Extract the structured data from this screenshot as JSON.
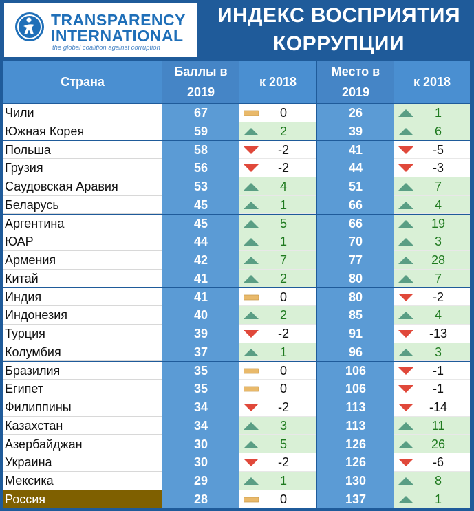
{
  "logo": {
    "line1": "TRANSPARENCY",
    "line2": "INTERNATIONAL",
    "tagline": "the global coalition against corruption",
    "icon": "globe-person-icon"
  },
  "title": {
    "line1": "ИНДЕКС ВОСПРИЯТИЯ",
    "line2": "КОРРУПЦИИ"
  },
  "colors": {
    "header_bg": "#1f5b9a",
    "column_header_bg": "#4a8fd1",
    "value_column_bg": "#5b9bd5",
    "up_cell_bg": "#d9f0d6",
    "up_arrow": "#5a9e84",
    "down_arrow": "#e0483a",
    "same_bar": "#e9b96a",
    "highlight_row": "#7f6000"
  },
  "columns": {
    "country": "Страна",
    "score_line1": "Баллы в",
    "score_line2": "2019",
    "dscore": "к 2018",
    "place_line1": "Место в",
    "place_line2": "2019",
    "dplace": "к 2018"
  },
  "rows": [
    {
      "country": "Чили",
      "score": "67",
      "dscore": "0",
      "dscore_dir": "same",
      "place": "26",
      "dplace": "1",
      "dplace_dir": "up"
    },
    {
      "country": "Южная Корея",
      "score": "59",
      "dscore": "2",
      "dscore_dir": "up",
      "place": "39",
      "dplace": "6",
      "dplace_dir": "up"
    },
    {
      "country": "Польша",
      "score": "58",
      "dscore": "-2",
      "dscore_dir": "down",
      "place": "41",
      "dplace": "-5",
      "dplace_dir": "down"
    },
    {
      "country": "Грузия",
      "score": "56",
      "dscore": "-2",
      "dscore_dir": "down",
      "place": "44",
      "dplace": "-3",
      "dplace_dir": "down"
    },
    {
      "country": "Саудовская Аравия",
      "score": "53",
      "dscore": "4",
      "dscore_dir": "up",
      "place": "51",
      "dplace": "7",
      "dplace_dir": "up"
    },
    {
      "country": "Беларусь",
      "score": "45",
      "dscore": "1",
      "dscore_dir": "up",
      "place": "66",
      "dplace": "4",
      "dplace_dir": "up"
    },
    {
      "country": "Аргентина",
      "score": "45",
      "dscore": "5",
      "dscore_dir": "up",
      "place": "66",
      "dplace": "19",
      "dplace_dir": "up"
    },
    {
      "country": "ЮАР",
      "score": "44",
      "dscore": "1",
      "dscore_dir": "up",
      "place": "70",
      "dplace": "3",
      "dplace_dir": "up"
    },
    {
      "country": "Армения",
      "score": "42",
      "dscore": "7",
      "dscore_dir": "up",
      "place": "77",
      "dplace": "28",
      "dplace_dir": "up"
    },
    {
      "country": "Китай",
      "score": "41",
      "dscore": "2",
      "dscore_dir": "up",
      "place": "80",
      "dplace": "7",
      "dplace_dir": "up"
    },
    {
      "country": "Индия",
      "score": "41",
      "dscore": "0",
      "dscore_dir": "same",
      "place": "80",
      "dplace": "-2",
      "dplace_dir": "down"
    },
    {
      "country": "Индонезия",
      "score": "40",
      "dscore": "2",
      "dscore_dir": "up",
      "place": "85",
      "dplace": "4",
      "dplace_dir": "up"
    },
    {
      "country": "Турция",
      "score": "39",
      "dscore": "-2",
      "dscore_dir": "down",
      "place": "91",
      "dplace": "-13",
      "dplace_dir": "down"
    },
    {
      "country": "Колумбия",
      "score": "37",
      "dscore": "1",
      "dscore_dir": "up",
      "place": "96",
      "dplace": "3",
      "dplace_dir": "up"
    },
    {
      "country": "Бразилия",
      "score": "35",
      "dscore": "0",
      "dscore_dir": "same",
      "place": "106",
      "dplace": "-1",
      "dplace_dir": "down"
    },
    {
      "country": "Египет",
      "score": "35",
      "dscore": "0",
      "dscore_dir": "same",
      "place": "106",
      "dplace": "-1",
      "dplace_dir": "down"
    },
    {
      "country": "Филиппины",
      "score": "34",
      "dscore": "-2",
      "dscore_dir": "down",
      "place": "113",
      "dplace": "-14",
      "dplace_dir": "down"
    },
    {
      "country": "Казахстан",
      "score": "34",
      "dscore": "3",
      "dscore_dir": "up",
      "place": "113",
      "dplace": "11",
      "dplace_dir": "up"
    },
    {
      "country": "Азербайджан",
      "score": "30",
      "dscore": "5",
      "dscore_dir": "up",
      "place": "126",
      "dplace": "26",
      "dplace_dir": "up"
    },
    {
      "country": "Украина",
      "score": "30",
      "dscore": "-2",
      "dscore_dir": "down",
      "place": "126",
      "dplace": "-6",
      "dplace_dir": "down"
    },
    {
      "country": "Мексика",
      "score": "29",
      "dscore": "1",
      "dscore_dir": "up",
      "place": "130",
      "dplace": "8",
      "dplace_dir": "up"
    },
    {
      "country": "Россия",
      "score": "28",
      "dscore": "0",
      "dscore_dir": "same",
      "place": "137",
      "dplace": "1",
      "dplace_dir": "up",
      "highlight": true
    }
  ]
}
